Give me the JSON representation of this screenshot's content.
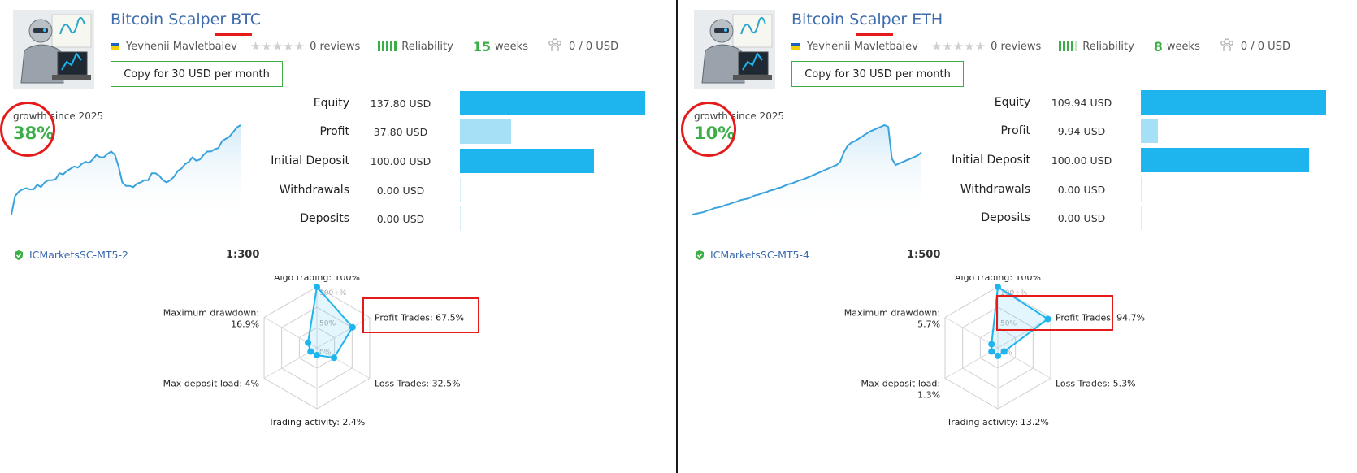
{
  "colors": {
    "accent_green": "#3cae47",
    "title_blue": "#3d6bad",
    "bar_blue": "#1eb4ee",
    "bar_light": "#a6e0f7",
    "annotation_red": "#e51b1b"
  },
  "panels": [
    {
      "title": "Bitcoin Scalper BTC",
      "author": "Yevhenii Mavletbaiev",
      "reviews": "0 reviews",
      "rating_stars": 0,
      "reliability_label": "Reliability",
      "reliability_level": 5,
      "weeks_num": "15",
      "weeks_label": "weeks",
      "subscribers": "0 / 0 USD",
      "copy_button": "Copy for 30 USD per month",
      "growth_label": "growth since 2025",
      "growth_value": "38%",
      "growth_series": [
        0,
        16,
        20,
        22,
        23,
        22,
        22,
        26,
        24,
        28,
        30,
        30,
        31,
        36,
        35,
        38,
        40,
        42,
        41,
        44,
        46,
        45,
        48,
        52,
        50,
        50,
        53,
        55,
        52,
        42,
        28,
        25,
        25,
        24,
        27,
        28,
        30,
        30,
        36,
        36,
        34,
        30,
        28,
        30,
        33,
        38,
        40,
        44,
        46,
        50,
        47,
        48,
        52,
        55,
        55,
        57,
        58,
        64,
        66,
        68,
        72,
        76,
        78
      ],
      "stats": [
        {
          "label": "Equity",
          "value": "137.80 USD",
          "amount": 137.8
        },
        {
          "label": "Profit",
          "value": "37.80 USD",
          "amount": 37.8
        },
        {
          "label": "Initial Deposit",
          "value": "100.00 USD",
          "amount": 100.0
        },
        {
          "label": "Withdrawals",
          "value": "0.00 USD",
          "amount": 0
        },
        {
          "label": "Deposits",
          "value": "0.00 USD",
          "amount": 0
        }
      ],
      "server": "ICMarketsSC-MT5-2",
      "leverage": "1:300",
      "radar": {
        "axes": [
          {
            "label": "Algo trading: 100%",
            "value": 100
          },
          {
            "label": "Profit Trades: 67.5%",
            "value": 67.5
          },
          {
            "label": "Loss Trades: 32.5%",
            "value": 32.5
          },
          {
            "label": "Trading activity: 2.4%",
            "value": 2.4
          },
          {
            "label": "Max deposit load: 4%",
            "value": 4
          },
          {
            "label": "Maximum drawdown: 16.9%",
            "value": 16.9
          }
        ],
        "tick_labels": [
          "100+%",
          "50%",
          "0%"
        ]
      }
    },
    {
      "title": "Bitcoin Scalper ETH",
      "author": "Yevhenii Mavletbaiev",
      "reviews": "0 reviews",
      "rating_stars": 0,
      "reliability_label": "Reliability",
      "reliability_level": 4,
      "weeks_num": "8",
      "weeks_label": "weeks",
      "subscribers": "0 / 0 USD",
      "copy_button": "Copy for 30 USD per month",
      "growth_label": "growth since 2025",
      "growth_value": "10%",
      "growth_series": [
        0,
        1,
        2,
        3,
        5,
        6,
        8,
        9,
        10,
        12,
        13,
        15,
        16,
        18,
        19,
        20,
        22,
        24,
        25,
        27,
        28,
        30,
        31,
        33,
        34,
        36,
        38,
        39,
        41,
        43,
        44,
        46,
        48,
        50,
        52,
        54,
        56,
        58,
        60,
        62,
        66,
        78,
        86,
        90,
        92,
        95,
        98,
        101,
        104,
        106,
        108,
        110,
        112,
        110,
        70,
        62,
        64,
        66,
        68,
        70,
        72,
        74,
        78
      ],
      "stats": [
        {
          "label": "Equity",
          "value": "109.94 USD",
          "amount": 109.94
        },
        {
          "label": "Profit",
          "value": "9.94 USD",
          "amount": 9.94
        },
        {
          "label": "Initial Deposit",
          "value": "100.00 USD",
          "amount": 100.0
        },
        {
          "label": "Withdrawals",
          "value": "0.00 USD",
          "amount": 0
        },
        {
          "label": "Deposits",
          "value": "0.00 USD",
          "amount": 0
        }
      ],
      "server": "ICMarketsSC-MT5-4",
      "leverage": "1:500",
      "radar": {
        "axes": [
          {
            "label": "Algo trading: 100%",
            "value": 100
          },
          {
            "label": "Profit Trades: 94.7%",
            "value": 94.7
          },
          {
            "label": "Loss Trades: 5.3%",
            "value": 5.3
          },
          {
            "label": "Trading activity: 13.2%",
            "value": 13.2
          },
          {
            "label": "Max deposit load: 1.3%",
            "value": 1.3
          },
          {
            "label": "Maximum drawdown: 5.7%",
            "value": 5.7
          }
        ],
        "tick_labels": [
          "100+%",
          "50%",
          "0%"
        ]
      }
    }
  ]
}
